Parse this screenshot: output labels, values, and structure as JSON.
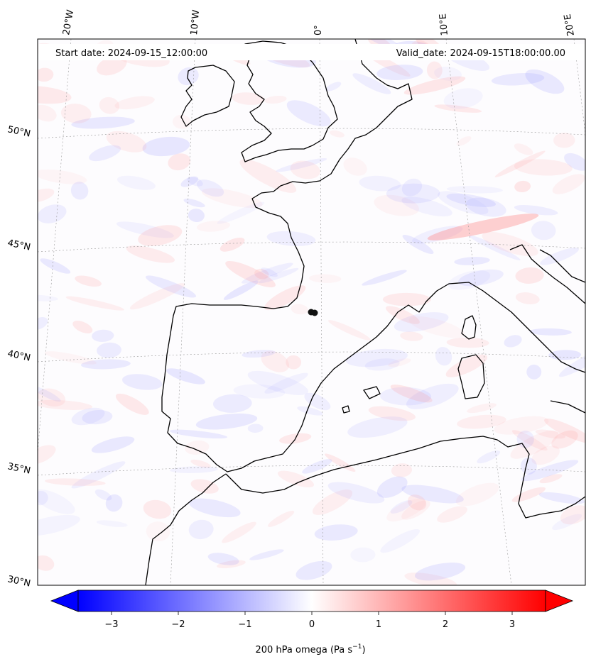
{
  "header": {
    "start_date": "Start date: 2024-09-15_12:00:00",
    "valid_date": "Valid_date: 2024-09-15T18:00:00.00"
  },
  "map": {
    "projection": "conic",
    "lon_labels": [
      "20°W",
      "10°W",
      "0°",
      "10°E",
      "20°E"
    ],
    "lat_labels": [
      "50°N",
      "45°N",
      "40°N",
      "35°N",
      "30°N"
    ],
    "field": "200 hPa omega",
    "marker_icon": "dot-marker-icon"
  },
  "colorbar": {
    "label": "200 hPa omega (Pa s",
    "label_exponent": "−1",
    "label_close": ")",
    "ticks": [
      {
        "value": -3,
        "label": "−3"
      },
      {
        "value": -2,
        "label": "−2"
      },
      {
        "value": -1,
        "label": "−1"
      },
      {
        "value": 0,
        "label": "0"
      },
      {
        "value": 1,
        "label": "1"
      },
      {
        "value": 2,
        "label": "2"
      },
      {
        "value": 3,
        "label": "3"
      }
    ],
    "range": [
      -3.5,
      3.5
    ],
    "colors": {
      "low": "#0000ff",
      "mid": "#ffffff",
      "high": "#ff0000"
    }
  }
}
